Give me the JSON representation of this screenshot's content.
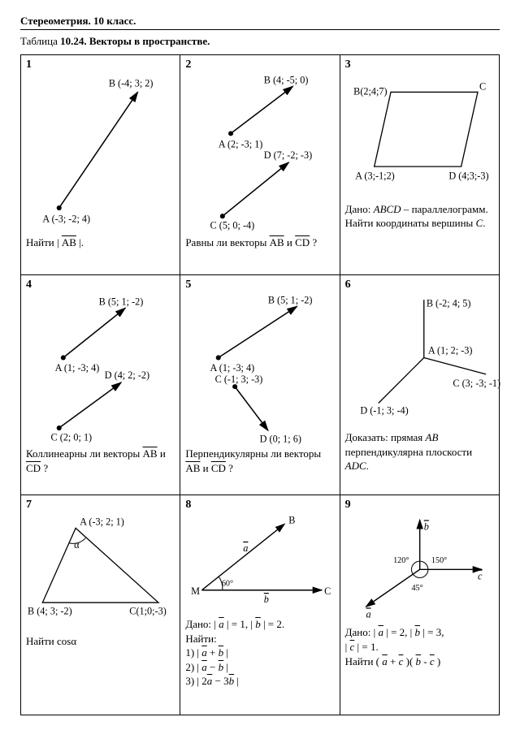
{
  "header": "Стереометрия. 10 класс.",
  "tableTitle_a": "Таблица ",
  "tableTitle_b": "10.24. Векторы в пространстве.",
  "c1": {
    "num": "1",
    "A": "A (-3; -2; 4)",
    "B": "B (-4; 3; 2)",
    "q": "Найти | <span class='ov'>AB</span> |."
  },
  "c2": {
    "num": "2",
    "A": "A (2; -3; 1)",
    "B": "B (4; -5; 0)",
    "C": "C (5; 0; -4)",
    "D": "D (7; -2; -3)",
    "q": "Равны ли векторы  <span class='ov'>AB</span>  и  <span class='ov'>CD</span> ?"
  },
  "c3": {
    "num": "3",
    "A": "A (3;-1;2)",
    "B": "B(2;4;7)",
    "C": "C",
    "D": "D (4;3;-3)",
    "q": "Дано: <span class='it'>ABCD</span> – параллелограмм. Найти координаты вершины <span class='it'>C</span>."
  },
  "c4": {
    "num": "4",
    "A": "A (1; -3; 4)",
    "B": "B (5; 1; -2)",
    "C": "C (2; 0; 1)",
    "D": "D (4; 2; -2)",
    "q": "Коллинеарны ли векторы  <span class='ov'>AB</span>  и  <span class='ov'>CD</span> ?"
  },
  "c5": {
    "num": "5",
    "A": "A (1; -3; 4)",
    "B": "B (5; 1; -2)",
    "C": "C (-1; 3; -3)",
    "D": "D (0; 1; 6)",
    "q": "Перпендикулярны ли векторы  <span class='ov'>AB</span>  и  <span class='ov'>CD</span> ?"
  },
  "c6": {
    "num": "6",
    "A": "A (1; 2; -3)",
    "B": "B (-2; 4; 5)",
    "C": "C (3; -3; -1)",
    "D": "D (-1; 3; -4)",
    "q": "Доказать: прямая <span class='it'>AB</span> перпендикулярна плоскости <span class='it'>ADC</span>."
  },
  "c7": {
    "num": "7",
    "A": "A (-3; 2; 1)",
    "B": "B (4; 3; -2)",
    "C": "C(1;0;-3)",
    "alpha": "α",
    "q": "Найти cosα"
  },
  "c8": {
    "num": "8",
    "M": "M",
    "B": "B",
    "C": "C",
    "a": "a",
    "b": "b",
    "angle": "60°",
    "q": "Дано: | <span class='ov it'>a</span> | = 1, | <span class='ov it'>b</span> | = 2.<br>Найти:<br>1) | <span class='ov it'>a</span>  +  <span class='ov it'>b</span> |<br>2) | <span class='ov it'>a</span>  −  <span class='ov it'>b</span> |<br>3) | 2<span class='ov it'>a</span>  − 3<span class='ov it'>b</span> |"
  },
  "c9": {
    "num": "9",
    "a": "a",
    "b": "b",
    "c": "c",
    "ang1": "120°",
    "ang2": "150°",
    "ang3": "45°",
    "q": "Дано: | <span class='ov it'>a</span> | = 2, | <span class='ov it'>b</span> | = 3,<br>| <span class='ov it'>c</span> | = 1.<br>Найти ( <span class='ov it'>a</span>  + <span class='ov it'>c</span> )( <span class='ov it'>b</span> -  <span class='ov it'>c</span> )"
  }
}
